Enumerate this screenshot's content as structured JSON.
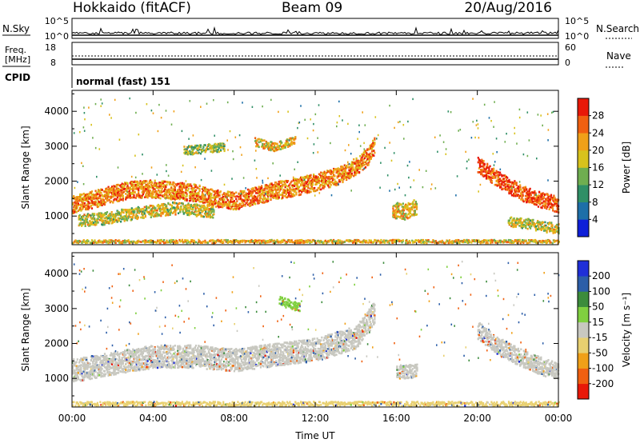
{
  "header": {
    "station": "Hokkaido (fitACF)",
    "beam": "Beam 09",
    "date": "20/Aug/2016"
  },
  "strip": {
    "nsky_label": "N.Sky",
    "nsky_ticks": [
      "10^5",
      "10^0"
    ],
    "nsearch_label": "N.Search",
    "nsearch_ticks": [
      "10^5",
      "10^0"
    ],
    "freq_label_1": "Freq.",
    "freq_label_2": "[MHz]",
    "freq_ticks": [
      "18",
      "8"
    ],
    "nave_label": "Nave",
    "nave_ticks": [
      "60",
      "0"
    ],
    "cpid_label": "CPID",
    "cpid_text": "normal (fast) 151"
  },
  "chart_data": [
    {
      "type": "heatmap",
      "panel": "power",
      "ylabel": "Slant Range [km]",
      "ylim": [
        180,
        4600
      ],
      "yticks": [
        1000,
        2000,
        3000,
        4000
      ],
      "xlim": [
        0,
        24
      ],
      "colorbar": {
        "label": "Power [dB]",
        "bin_edges": [
          0,
          4,
          8,
          12,
          16,
          20,
          24,
          28,
          32
        ],
        "tick_labels": [
          "4",
          "8",
          "12",
          "16",
          "20",
          "24",
          "28"
        ],
        "colors": [
          "#0f1fd8",
          "#1d6fa8",
          "#2f8f66",
          "#6fae50",
          "#d8c21c",
          "#f0a018",
          "#f06010",
          "#e81808"
        ]
      },
      "echo_bands": [
        {
          "t": [
            0.0,
            1.0,
            2.0,
            3.0,
            4.0,
            5.0,
            6.0,
            7.0,
            8.0,
            9.0,
            10.0,
            11.0,
            12.0,
            13.0,
            14.0,
            14.6,
            14.9
          ],
          "r": [
            1350,
            1500,
            1650,
            1800,
            1800,
            1750,
            1700,
            1550,
            1450,
            1600,
            1750,
            1850,
            2000,
            2150,
            2450,
            2750,
            3050
          ],
          "w": 500,
          "level": 24
        },
        {
          "t": [
            0.3,
            1.5,
            3.0,
            5.0,
            7.0
          ],
          "r": [
            900,
            950,
            1100,
            1250,
            1150
          ],
          "w": 350,
          "level": 18
        },
        {
          "t": [
            15.8,
            16.4,
            17.0
          ],
          "r": [
            1200,
            1150,
            1300
          ],
          "w": 450,
          "level": 20
        },
        {
          "t": [
            20.0,
            20.8,
            21.5,
            22.3,
            23.0,
            24.0
          ],
          "r": [
            2500,
            2150,
            1900,
            1650,
            1500,
            1350
          ],
          "w": 450,
          "level": 28
        },
        {
          "t": [
            21.5,
            22.5,
            23.5,
            24.0
          ],
          "r": [
            850,
            800,
            700,
            650
          ],
          "w": 300,
          "level": 18
        },
        {
          "t": [
            5.5,
            6.5,
            7.5
          ],
          "r": [
            2900,
            2950,
            3000
          ],
          "w": 250,
          "level": 16
        },
        {
          "t": [
            9.0,
            10.0,
            11.0
          ],
          "r": [
            3150,
            3000,
            3200
          ],
          "w": 250,
          "level": 20
        },
        {
          "t": [
            0.0,
            6.0,
            12.0,
            18.0,
            24.0
          ],
          "r": [
            300,
            300,
            300,
            300,
            300
          ],
          "w": 90,
          "level": 20
        }
      ]
    },
    {
      "type": "heatmap",
      "panel": "velocity",
      "ylabel": "Slant Range [km]",
      "xlabel": "Time UT",
      "ylim": [
        180,
        4600
      ],
      "yticks": [
        1000,
        2000,
        3000,
        4000
      ],
      "xlim": [
        0,
        24
      ],
      "xticks": [
        0,
        4,
        8,
        12,
        16,
        20,
        24
      ],
      "xtick_labels": [
        "00:00",
        "04:00",
        "08:00",
        "12:00",
        "16:00",
        "20:00",
        "00:00"
      ],
      "colorbar": {
        "label": "Velocity [m s⁻¹]",
        "bin_edges": [
          -300,
          -200,
          -100,
          -50,
          -15,
          15,
          50,
          100,
          200,
          300
        ],
        "tick_labels": [
          "200",
          "100",
          "50",
          "15",
          "-15",
          "-50",
          "-100",
          "-200"
        ],
        "colors": [
          "#e81808",
          "#f06010",
          "#f0a018",
          "#e8d070",
          "#c8c8c0",
          "#80d040",
          "#3c8c3c",
          "#2c5ea8",
          "#1f2fd8"
        ]
      },
      "echo_bands": [
        {
          "t": [
            0.0,
            2.0,
            4.0,
            6.0,
            8.0,
            10.0,
            12.0,
            14.0,
            14.9
          ],
          "r": [
            1250,
            1450,
            1650,
            1650,
            1550,
            1700,
            1850,
            2200,
            2900
          ],
          "w": 650,
          "level": 0
        },
        {
          "t": [
            16.0,
            17.0
          ],
          "r": [
            1200,
            1250
          ],
          "w": 400,
          "level": 0
        },
        {
          "t": [
            20.0,
            21.0,
            22.0,
            23.0,
            24.0
          ],
          "r": [
            2400,
            1950,
            1650,
            1400,
            1200
          ],
          "w": 500,
          "level": 0
        },
        {
          "t": [
            10.2,
            11.2
          ],
          "r": [
            3250,
            3050
          ],
          "w": 250,
          "level": 30
        },
        {
          "t": [
            0.0,
            6.0,
            12.0,
            18.0,
            24.0
          ],
          "r": [
            300,
            300,
            300,
            300,
            300
          ],
          "w": 120,
          "level": -30
        }
      ]
    }
  ]
}
